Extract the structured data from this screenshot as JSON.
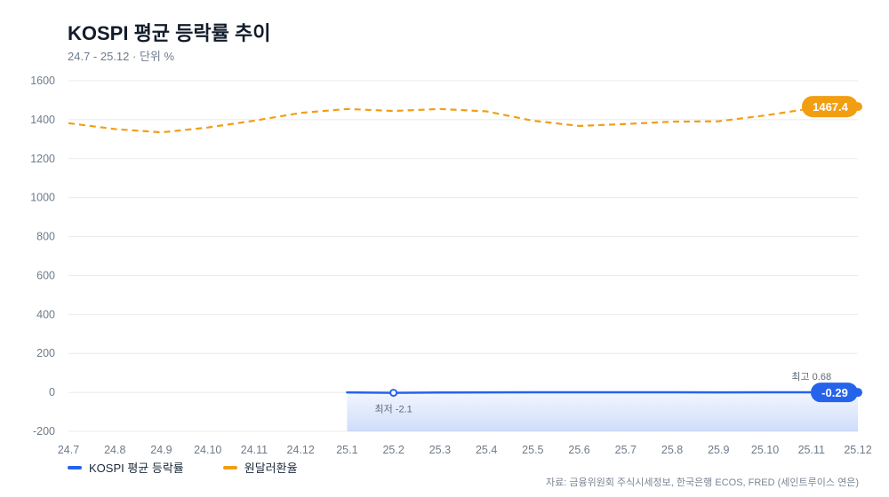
{
  "header": {
    "title": "KOSPI 평균 등락률 추이",
    "subtitle": "24.7 - 25.12 · 단위 %"
  },
  "footer": {
    "source": "자료: 금융위원회 주식시세정보, 한국은행 ECOS, FRED (세인트루이스 연은)"
  },
  "colors": {
    "kospi": "#2563eb",
    "fx": "#f29e12",
    "grid": "#e8ebef",
    "axis_text": "#6e7b8a"
  },
  "chart_data": {
    "type": "line",
    "title": "KOSPI 평균 등락률 추이",
    "subtitle": "24.7 - 25.12 · 단위 %",
    "categories": [
      "24.7",
      "24.8",
      "24.9",
      "24.10",
      "24.11",
      "24.12",
      "25.1",
      "25.2",
      "25.3",
      "25.4",
      "25.5",
      "25.6",
      "25.7",
      "25.8",
      "25.9",
      "25.10",
      "25.11",
      "25.12"
    ],
    "y_ticks": [
      1600,
      1400,
      1200,
      1000,
      800,
      600,
      400,
      200,
      0,
      -200
    ],
    "ylim": [
      -200,
      1600
    ],
    "grid": true,
    "legend_position": "bottom-left",
    "series": [
      {
        "name": "KOSPI 평균 등락률",
        "style": "solid",
        "area_fill": true,
        "values": [
          null,
          null,
          null,
          null,
          null,
          null,
          -0.1,
          -2.1,
          -0.6,
          0.2,
          0.3,
          0.5,
          0.4,
          0.3,
          0.2,
          0.4,
          0.68,
          -0.29
        ],
        "annotations": [
          {
            "label": "최저 -2.1",
            "category": "25.2",
            "value": -2.1,
            "position": "below"
          },
          {
            "label": "최고 0.68",
            "category": "25.11",
            "value": 0.68,
            "position": "above"
          },
          {
            "label": "-0.29",
            "category": "25.12",
            "value": -0.29,
            "badge": true
          }
        ]
      },
      {
        "name": "원달러환율",
        "style": "dashed",
        "values": [
          1382,
          1352,
          1335,
          1360,
          1395,
          1435,
          1455,
          1445,
          1455,
          1443,
          1395,
          1368,
          1378,
          1390,
          1392,
          1422,
          1458,
          1467.4
        ],
        "annotations": [
          {
            "label": "1467.4",
            "category": "25.12",
            "value": 1467.4,
            "badge": true
          }
        ]
      }
    ]
  }
}
